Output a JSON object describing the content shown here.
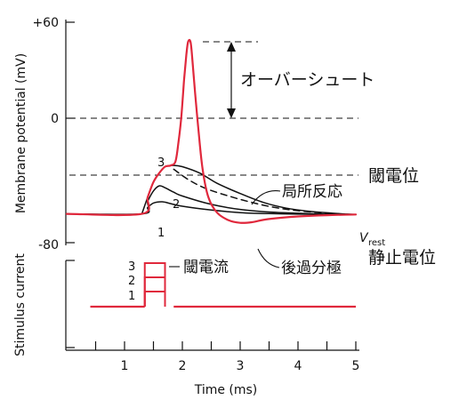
{
  "chart_data": [
    {
      "type": "line",
      "title": "",
      "xlabel": "Time (ms)",
      "ylabel": "Membrane potential (mV)",
      "xlim": [
        0,
        5.2
      ],
      "ylim": [
        -80,
        60
      ],
      "x_ticks": [
        "1",
        "2",
        "3",
        "4",
        "5"
      ],
      "y_ticks": [
        "+60",
        "0",
        "-80"
      ],
      "reference_lines": [
        {
          "label": "オーバーシュート",
          "y": 60
        },
        {
          "label": "",
          "y": 0
        },
        {
          "label": "閾電位",
          "y": -38
        }
      ],
      "vrest_label": "V",
      "vrest_sub": "rest",
      "rest_label": "静止電位",
      "local_response_label": "局所反応",
      "afterhyperpolarization_label": "後過分極",
      "stimulus_numbers": [
        "1",
        "2",
        "3"
      ],
      "series": [
        {
          "name": "1",
          "color": "#111111",
          "style": "solid",
          "points": [
            [
              0.0,
              -75
            ],
            [
              1.3,
              -75
            ],
            [
              1.4,
              -70
            ],
            [
              1.5,
              -66.5
            ],
            [
              1.65,
              -65.5
            ],
            [
              1.8,
              -67
            ],
            [
              2.0,
              -69
            ],
            [
              2.5,
              -72
            ],
            [
              3.0,
              -74
            ],
            [
              3.5,
              -74.8
            ],
            [
              4.0,
              -75.2
            ],
            [
              4.5,
              -75.3
            ],
            [
              5.0,
              -75.5
            ]
          ]
        },
        {
          "name": "2",
          "color": "#111111",
          "style": "solid",
          "points": [
            [
              0.0,
              -75
            ],
            [
              1.3,
              -75
            ],
            [
              1.4,
              -65
            ],
            [
              1.5,
              -57
            ],
            [
              1.6,
              -53
            ],
            [
              1.7,
              -54.5
            ],
            [
              1.85,
              -58
            ],
            [
              2.0,
              -61
            ],
            [
              2.5,
              -67.5
            ],
            [
              3.0,
              -71.5
            ],
            [
              3.5,
              -73.5
            ],
            [
              4.0,
              -74.5
            ],
            [
              4.5,
              -75.2
            ],
            [
              5.0,
              -75.5
            ]
          ]
        },
        {
          "name": "3",
          "color": "#111111",
          "style": "solid",
          "points": [
            [
              1.3,
              -75
            ],
            [
              1.4,
              -62
            ],
            [
              1.5,
              -50
            ],
            [
              1.6,
              -43
            ],
            [
              1.7,
              -38
            ],
            [
              1.85,
              -37
            ],
            [
              2.0,
              -38
            ],
            [
              2.3,
              -43
            ],
            [
              2.6,
              -51
            ],
            [
              3.0,
              -59
            ],
            [
              3.4,
              -66
            ],
            [
              3.8,
              -70.5
            ],
            [
              4.2,
              -73
            ],
            [
              4.6,
              -74.5
            ],
            [
              5.0,
              -75.5
            ]
          ]
        },
        {
          "name": "",
          "color": "#111111",
          "style": "dashed",
          "points": [
            [
              1.85,
              -40
            ],
            [
              2.1,
              -48
            ],
            [
              2.4,
              -55
            ],
            [
              2.8,
              -61
            ],
            [
              3.2,
              -66
            ],
            [
              3.6,
              -70
            ],
            [
              4.0,
              -72.5
            ],
            [
              4.5,
              -74.5
            ],
            [
              5.0,
              -75.5
            ]
          ]
        },
        {
          "name": "",
          "color": "#e0283c",
          "style": "solid",
          "points": [
            [
              0.0,
              -75
            ],
            [
              1.3,
              -75
            ],
            [
              1.4,
              -62
            ],
            [
              1.5,
              -50
            ],
            [
              1.6,
              -43
            ],
            [
              1.7,
              -38
            ],
            [
              1.8,
              -37
            ],
            [
              1.88,
              -34
            ],
            [
              1.93,
              -20
            ],
            [
              1.98,
              0
            ],
            [
              2.03,
              30
            ],
            [
              2.07,
              50
            ],
            [
              2.1,
              60
            ],
            [
              2.14,
              60
            ],
            [
              2.17,
              48
            ],
            [
              2.22,
              20
            ],
            [
              2.28,
              -10
            ],
            [
              2.35,
              -40
            ],
            [
              2.45,
              -62
            ],
            [
              2.6,
              -74
            ],
            [
              2.8,
              -80
            ],
            [
              3.0,
              -82
            ],
            [
              3.2,
              -81.5
            ],
            [
              3.5,
              -79
            ],
            [
              4.0,
              -77
            ],
            [
              4.5,
              -76
            ],
            [
              5.0,
              -75.5
            ]
          ]
        }
      ]
    },
    {
      "type": "line",
      "title": "",
      "xlabel": "Time (ms)",
      "ylabel": "Stimulus current",
      "label": "閾電流",
      "numbers": [
        "3",
        "2",
        "1"
      ],
      "xlim": [
        0,
        5.2
      ],
      "series": [
        {
          "name": "1",
          "color": "#e0283c",
          "x": [
            1.35,
            1.7
          ],
          "level": 1
        },
        {
          "name": "2",
          "color": "#e0283c",
          "x": [
            1.35,
            1.7
          ],
          "level": 2
        },
        {
          "name": "3",
          "color": "#e0283c",
          "x": [
            1.35,
            1.7
          ],
          "level": 3
        }
      ]
    }
  ]
}
